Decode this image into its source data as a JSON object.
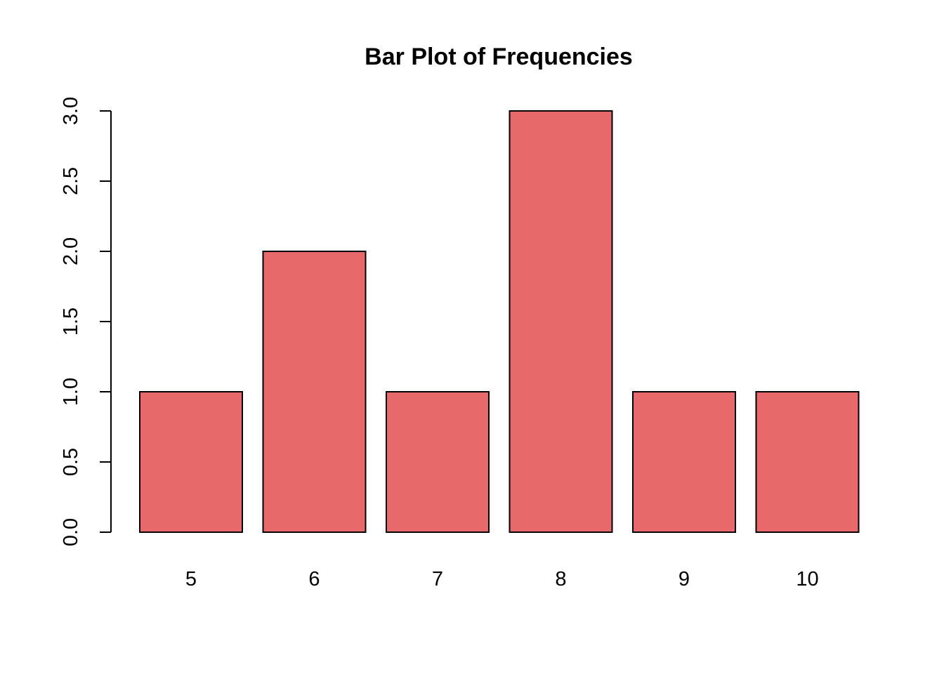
{
  "chart_data": {
    "type": "bar",
    "title": "Bar Plot of Frequencies",
    "xlabel": "",
    "ylabel": "",
    "categories": [
      "5",
      "6",
      "7",
      "8",
      "9",
      "10"
    ],
    "values": [
      1,
      2,
      1,
      3,
      1,
      1
    ],
    "ylim": [
      0,
      3
    ],
    "y_ticks": [
      "0.0",
      "0.5",
      "1.0",
      "1.5",
      "2.0",
      "2.5",
      "3.0"
    ],
    "grid": false,
    "legend": "none",
    "bar_color": "#e8696b"
  }
}
